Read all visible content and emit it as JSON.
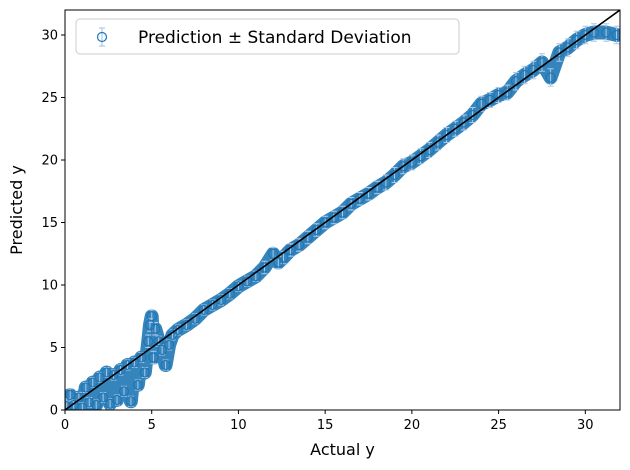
{
  "chart_data": {
    "type": "scatter",
    "title": "",
    "xlabel": "Actual y",
    "ylabel": "Predicted y",
    "xlim": [
      0,
      32
    ],
    "ylim": [
      0,
      32
    ],
    "xticks": [
      0,
      5,
      10,
      15,
      20,
      25,
      30
    ],
    "yticks": [
      0,
      5,
      10,
      15,
      20,
      25,
      30
    ],
    "grid": false,
    "legend": {
      "position": "top-left",
      "entries": [
        "Prediction ± Standard Deviation"
      ]
    },
    "series": [
      {
        "name": "Prediction ± Standard Deviation",
        "marker": "open-circle",
        "color": "#1f77b4",
        "error_bar_color": "#aec7e8",
        "points": [
          {
            "x": 0.1,
            "y": 0.3,
            "e": 0.6
          },
          {
            "x": 0.3,
            "y": 1.2,
            "e": 0.5
          },
          {
            "x": 0.5,
            "y": 0.4,
            "e": 0.4
          },
          {
            "x": 0.8,
            "y": 1.0,
            "e": 0.4
          },
          {
            "x": 1.0,
            "y": 0.2,
            "e": 0.4
          },
          {
            "x": 1.2,
            "y": 1.8,
            "e": 0.4
          },
          {
            "x": 1.4,
            "y": 0.6,
            "e": 0.4
          },
          {
            "x": 1.6,
            "y": 2.2,
            "e": 0.4
          },
          {
            "x": 1.8,
            "y": 0.4,
            "e": 0.4
          },
          {
            "x": 2.0,
            "y": 2.6,
            "e": 0.4
          },
          {
            "x": 2.2,
            "y": 1.0,
            "e": 0.4
          },
          {
            "x": 2.4,
            "y": 3.0,
            "e": 0.4
          },
          {
            "x": 2.6,
            "y": 0.5,
            "e": 0.4
          },
          {
            "x": 2.8,
            "y": 2.8,
            "e": 0.4
          },
          {
            "x": 3.0,
            "y": 0.8,
            "e": 0.4
          },
          {
            "x": 3.2,
            "y": 3.2,
            "e": 0.4
          },
          {
            "x": 3.4,
            "y": 1.5,
            "e": 0.4
          },
          {
            "x": 3.6,
            "y": 3.6,
            "e": 0.4
          },
          {
            "x": 3.8,
            "y": 0.7,
            "e": 0.4
          },
          {
            "x": 4.0,
            "y": 3.8,
            "e": 0.4
          },
          {
            "x": 4.2,
            "y": 2.0,
            "e": 0.4
          },
          {
            "x": 4.4,
            "y": 4.2,
            "e": 0.4
          },
          {
            "x": 4.6,
            "y": 3.0,
            "e": 0.4
          },
          {
            "x": 4.8,
            "y": 5.5,
            "e": 0.5
          },
          {
            "x": 4.9,
            "y": 6.8,
            "e": 0.5
          },
          {
            "x": 5.0,
            "y": 7.5,
            "e": 0.5
          },
          {
            "x": 5.1,
            "y": 4.2,
            "e": 0.5
          },
          {
            "x": 5.2,
            "y": 6.5,
            "e": 0.5
          },
          {
            "x": 5.4,
            "y": 5.5,
            "e": 0.4
          },
          {
            "x": 5.6,
            "y": 4.8,
            "e": 0.4
          },
          {
            "x": 5.8,
            "y": 3.6,
            "e": 0.4
          },
          {
            "x": 6.0,
            "y": 5.2,
            "e": 0.4
          },
          {
            "x": 6.2,
            "y": 6.0,
            "e": 0.4
          },
          {
            "x": 6.5,
            "y": 6.4,
            "e": 0.4
          },
          {
            "x": 7.0,
            "y": 6.8,
            "e": 0.4
          },
          {
            "x": 7.5,
            "y": 7.3,
            "e": 0.4
          },
          {
            "x": 8.0,
            "y": 8.0,
            "e": 0.4
          },
          {
            "x": 8.5,
            "y": 8.4,
            "e": 0.4
          },
          {
            "x": 9.0,
            "y": 8.8,
            "e": 0.4
          },
          {
            "x": 9.5,
            "y": 9.3,
            "e": 0.4
          },
          {
            "x": 10.0,
            "y": 9.9,
            "e": 0.4
          },
          {
            "x": 10.5,
            "y": 10.3,
            "e": 0.4
          },
          {
            "x": 11.0,
            "y": 10.7,
            "e": 0.4
          },
          {
            "x": 11.5,
            "y": 11.4,
            "e": 0.5
          },
          {
            "x": 12.0,
            "y": 12.5,
            "e": 0.5
          },
          {
            "x": 12.3,
            "y": 11.8,
            "e": 0.5
          },
          {
            "x": 12.6,
            "y": 12.2,
            "e": 0.5
          },
          {
            "x": 13.0,
            "y": 12.8,
            "e": 0.5
          },
          {
            "x": 13.5,
            "y": 13.2,
            "e": 0.5
          },
          {
            "x": 14.0,
            "y": 13.8,
            "e": 0.5
          },
          {
            "x": 14.5,
            "y": 14.4,
            "e": 0.5
          },
          {
            "x": 15.0,
            "y": 15.0,
            "e": 0.5
          },
          {
            "x": 15.5,
            "y": 15.4,
            "e": 0.5
          },
          {
            "x": 16.0,
            "y": 15.8,
            "e": 0.5
          },
          {
            "x": 16.5,
            "y": 16.5,
            "e": 0.5
          },
          {
            "x": 17.0,
            "y": 16.9,
            "e": 0.5
          },
          {
            "x": 17.5,
            "y": 17.3,
            "e": 0.5
          },
          {
            "x": 18.0,
            "y": 17.8,
            "e": 0.5
          },
          {
            "x": 18.5,
            "y": 18.2,
            "e": 0.6
          },
          {
            "x": 19.0,
            "y": 18.8,
            "e": 0.6
          },
          {
            "x": 19.5,
            "y": 19.5,
            "e": 0.6
          },
          {
            "x": 20.0,
            "y": 19.8,
            "e": 0.6
          },
          {
            "x": 20.5,
            "y": 20.3,
            "e": 0.6
          },
          {
            "x": 21.0,
            "y": 20.8,
            "e": 0.6
          },
          {
            "x": 21.5,
            "y": 21.4,
            "e": 0.6
          },
          {
            "x": 22.0,
            "y": 22.0,
            "e": 0.6
          },
          {
            "x": 22.5,
            "y": 22.5,
            "e": 0.6
          },
          {
            "x": 23.0,
            "y": 23.0,
            "e": 0.6
          },
          {
            "x": 23.5,
            "y": 23.6,
            "e": 0.6
          },
          {
            "x": 24.0,
            "y": 24.5,
            "e": 0.6
          },
          {
            "x": 24.5,
            "y": 24.8,
            "e": 0.6
          },
          {
            "x": 25.0,
            "y": 25.2,
            "e": 0.6
          },
          {
            "x": 25.5,
            "y": 25.4,
            "e": 0.6
          },
          {
            "x": 26.0,
            "y": 26.3,
            "e": 0.7
          },
          {
            "x": 26.5,
            "y": 26.8,
            "e": 0.7
          },
          {
            "x": 27.0,
            "y": 27.2,
            "e": 0.7
          },
          {
            "x": 27.5,
            "y": 27.8,
            "e": 0.7
          },
          {
            "x": 28.0,
            "y": 26.6,
            "e": 0.7
          },
          {
            "x": 28.5,
            "y": 28.6,
            "e": 0.7
          },
          {
            "x": 29.0,
            "y": 29.0,
            "e": 0.7
          },
          {
            "x": 29.5,
            "y": 29.6,
            "e": 0.7
          },
          {
            "x": 30.0,
            "y": 30.0,
            "e": 0.7
          },
          {
            "x": 30.5,
            "y": 30.2,
            "e": 0.7
          },
          {
            "x": 31.2,
            "y": 30.2,
            "e": 0.7
          },
          {
            "x": 31.8,
            "y": 30.0,
            "e": 0.7
          }
        ]
      },
      {
        "name": "",
        "type": "line",
        "color": "#000000",
        "points": [
          {
            "x": 0,
            "y": 0
          },
          {
            "x": 32,
            "y": 32
          }
        ]
      }
    ]
  }
}
